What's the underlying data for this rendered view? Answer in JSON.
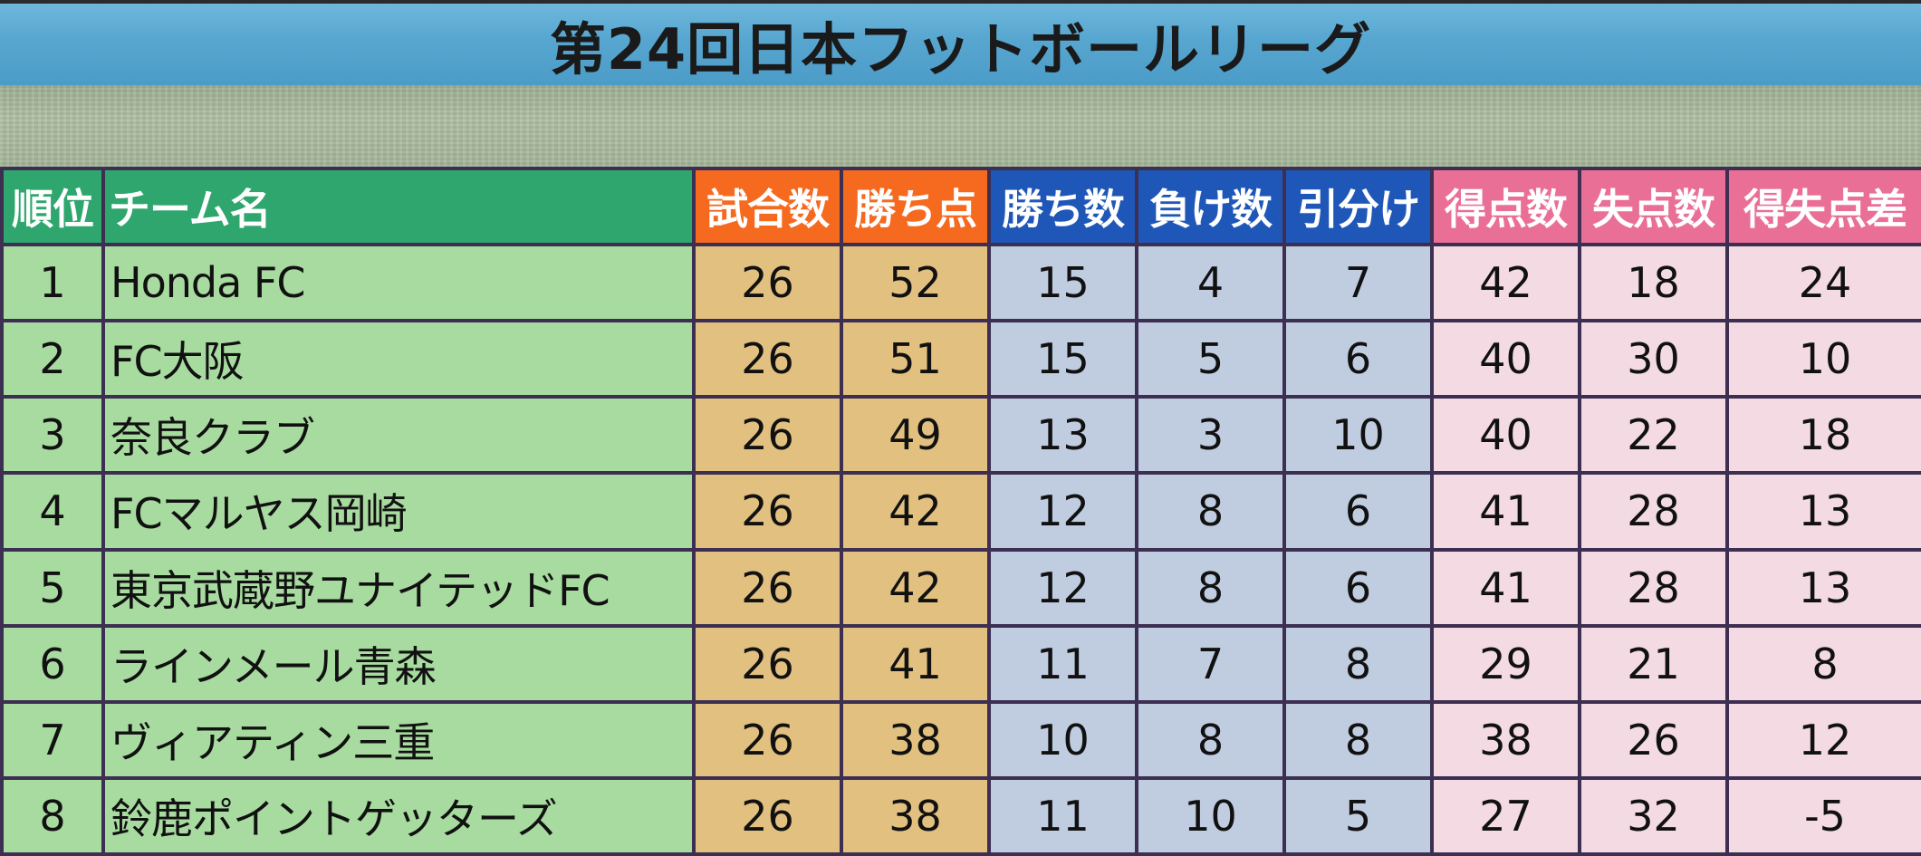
{
  "title": "第24回日本フットボールリーグ",
  "columns": {
    "rank": "順位",
    "team": "チーム名",
    "played": "試合数",
    "points": "勝ち点",
    "wins": "勝ち数",
    "losses": "負け数",
    "draws": "引分け",
    "goals_for": "得点数",
    "goals_against": "失点数",
    "goal_diff": "得失点差"
  },
  "rows": [
    {
      "rank": "1",
      "team": "Honda FC",
      "played": "26",
      "points": "52",
      "wins": "15",
      "losses": "4",
      "draws": "7",
      "goals_for": "42",
      "goals_against": "18",
      "goal_diff": "24"
    },
    {
      "rank": "2",
      "team": "FC大阪",
      "played": "26",
      "points": "51",
      "wins": "15",
      "losses": "5",
      "draws": "6",
      "goals_for": "40",
      "goals_against": "30",
      "goal_diff": "10"
    },
    {
      "rank": "3",
      "team": "奈良クラブ",
      "played": "26",
      "points": "49",
      "wins": "13",
      "losses": "3",
      "draws": "10",
      "goals_for": "40",
      "goals_against": "22",
      "goal_diff": "18"
    },
    {
      "rank": "4",
      "team": "FCマルヤス岡崎",
      "played": "26",
      "points": "42",
      "wins": "12",
      "losses": "8",
      "draws": "6",
      "goals_for": "41",
      "goals_against": "28",
      "goal_diff": "13"
    },
    {
      "rank": "5",
      "team": "東京武蔵野ユナイテッドFC",
      "played": "26",
      "points": "42",
      "wins": "12",
      "losses": "8",
      "draws": "6",
      "goals_for": "41",
      "goals_against": "28",
      "goal_diff": "13"
    },
    {
      "rank": "6",
      "team": "ラインメール青森",
      "played": "26",
      "points": "41",
      "wins": "11",
      "losses": "7",
      "draws": "8",
      "goals_for": "29",
      "goals_against": "21",
      "goal_diff": "8"
    },
    {
      "rank": "7",
      "team": "ヴィアティン三重",
      "played": "26",
      "points": "38",
      "wins": "10",
      "losses": "8",
      "draws": "8",
      "goals_for": "38",
      "goals_against": "26",
      "goal_diff": "12"
    },
    {
      "rank": "8",
      "team": "鈴鹿ポイントゲッターズ",
      "played": "26",
      "points": "38",
      "wins": "11",
      "losses": "10",
      "draws": "5",
      "goals_for": "27",
      "goals_against": "32",
      "goal_diff": "-5"
    }
  ],
  "colors": {
    "title_bar": "#56a6d0",
    "header_rank_team": "#2ea66d",
    "header_played_points": "#f56a1f",
    "header_wins_losses_draws": "#1f57b8",
    "header_goals": "#ea6f97",
    "cell_rank_team": "#a8dba0",
    "cell_played_points": "#e2c07f",
    "cell_wins_losses_draws": "#c0cce0",
    "cell_goals": "#f3dae3",
    "grid_lines": "#3d2f52"
  }
}
